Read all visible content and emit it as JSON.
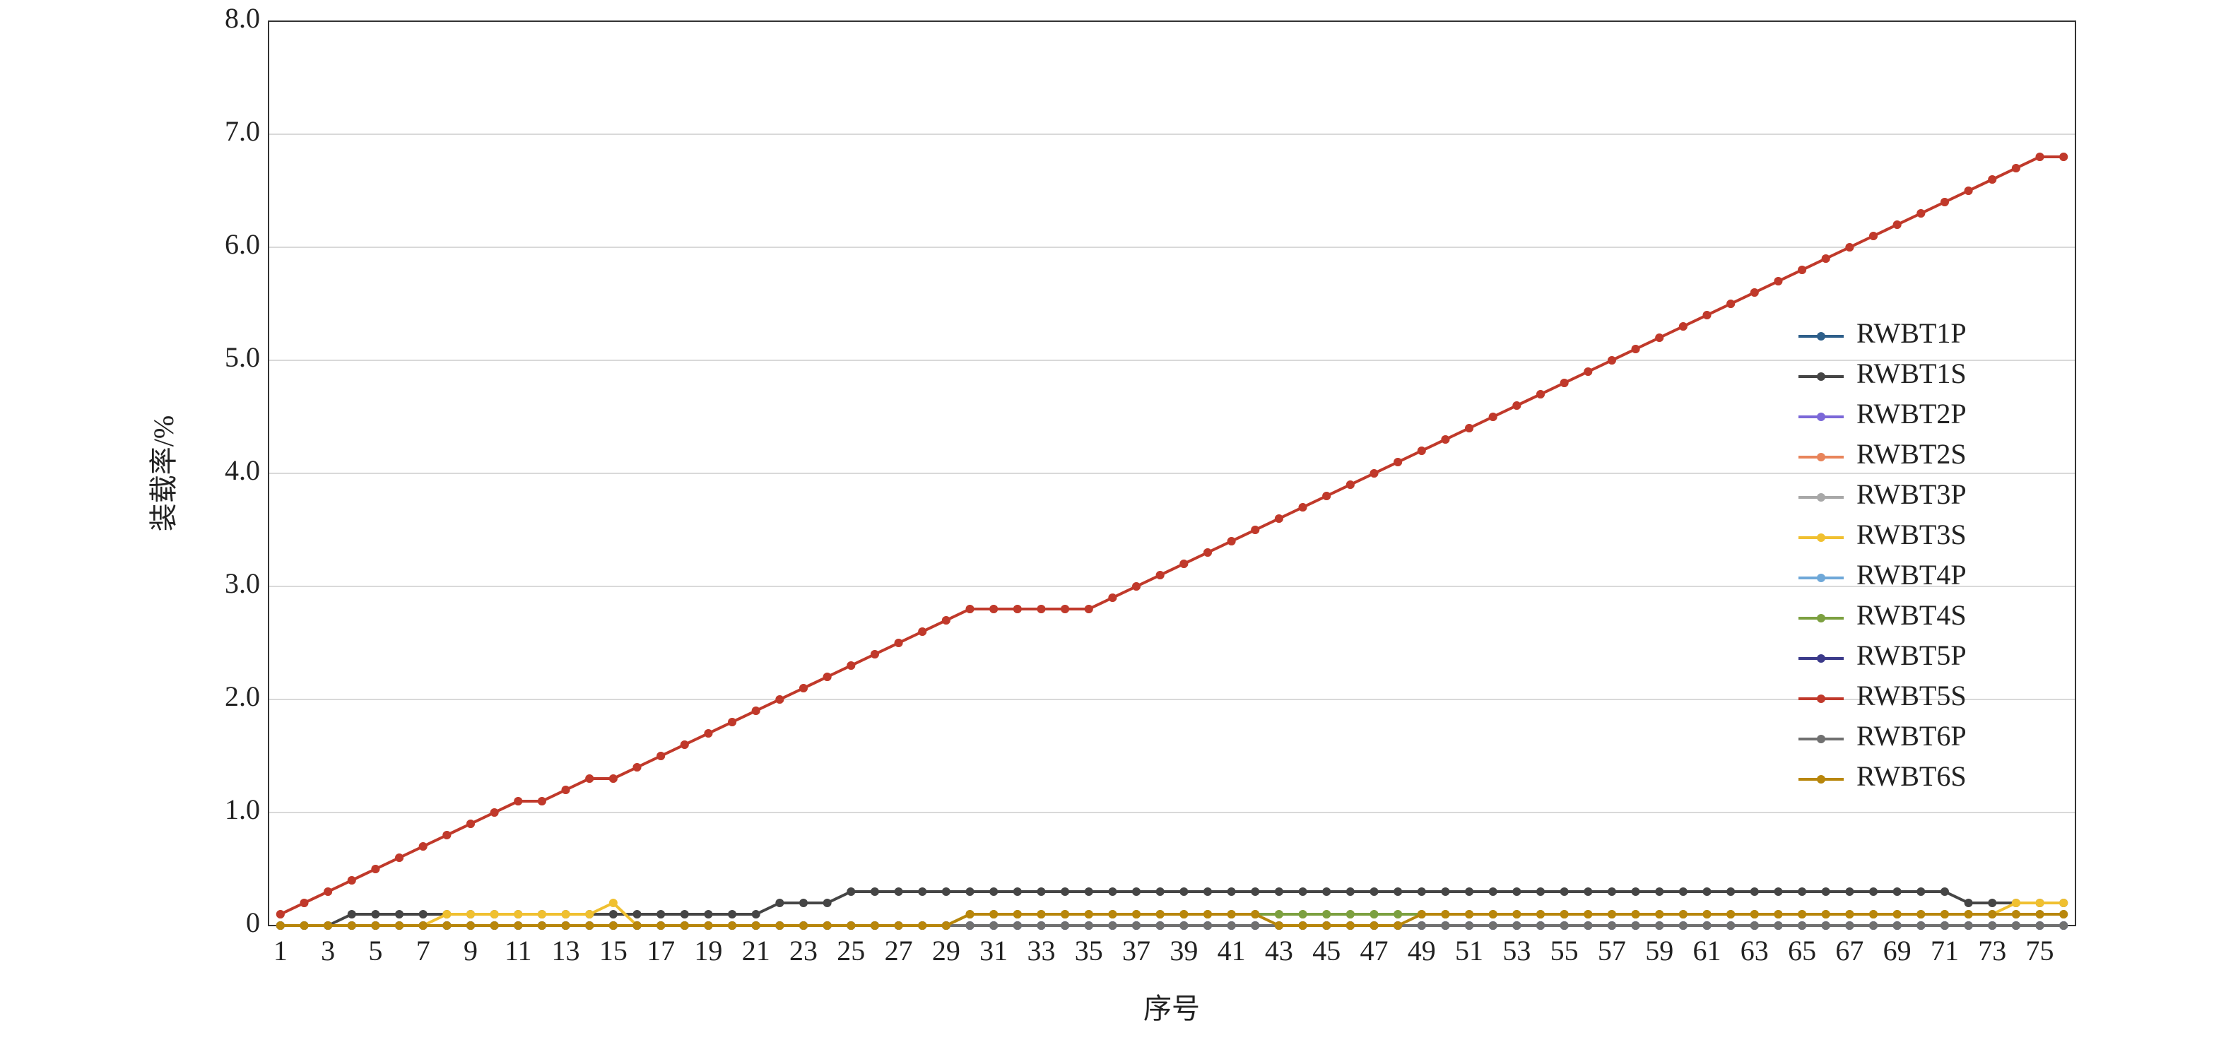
{
  "chart_data": {
    "type": "line",
    "x_label": "序号",
    "y_label": "装载率/%",
    "categories": [
      1,
      null,
      3,
      null,
      5,
      null,
      7,
      null,
      9,
      null,
      11,
      null,
      13,
      null,
      15,
      null,
      17,
      null,
      19,
      null,
      21,
      null,
      23,
      null,
      25,
      null,
      27,
      null,
      29,
      null,
      31,
      null,
      33,
      null,
      35,
      null,
      37,
      null,
      39,
      null,
      41,
      null,
      43,
      null,
      45,
      null,
      47,
      null,
      49,
      null,
      51,
      null,
      53,
      null,
      55,
      null,
      57,
      null,
      59,
      null,
      61,
      null,
      63,
      null,
      65,
      null,
      67,
      null,
      69,
      null,
      71,
      null,
      73,
      null,
      75,
      null
    ],
    "ylim": [
      0,
      8
    ],
    "yticks": [
      0,
      {
        "value": 1,
        "label": "1.0"
      },
      {
        "value": 2,
        "label": "2.0"
      },
      {
        "value": 3,
        "label": "3.0"
      },
      {
        "value": 4,
        "label": "4.0"
      },
      {
        "value": 5,
        "label": "5.0"
      },
      {
        "value": 6,
        "label": "6.0"
      },
      {
        "value": 7,
        "label": "7.0"
      },
      {
        "value": 8,
        "label": "8.0"
      }
    ],
    "grid": true,
    "series": [
      {
        "name": "RWBT1P",
        "color": "#2e5f8a",
        "values": [
          0,
          0,
          0,
          0,
          0,
          0,
          0,
          0,
          0,
          0,
          0,
          0,
          0,
          0,
          0,
          0,
          0,
          0,
          0,
          0,
          0,
          0,
          0,
          0,
          0,
          0,
          0,
          0,
          0,
          0,
          0,
          0,
          0,
          0,
          0,
          0,
          0,
          0,
          0,
          0,
          0,
          0,
          0,
          0,
          0,
          0,
          0,
          0,
          0,
          0,
          0,
          0,
          0,
          0,
          0,
          0,
          0,
          0,
          0,
          0,
          0,
          0,
          0,
          0,
          0,
          0,
          0,
          0,
          0,
          0,
          0,
          0,
          0,
          0,
          0,
          0
        ]
      },
      {
        "name": "RWBT1S",
        "color": "#454545",
        "values": [
          0,
          0,
          0,
          0.1,
          0.1,
          0.1,
          0.1,
          0.1,
          0.1,
          0.1,
          0.1,
          0.1,
          0.1,
          0.1,
          0.1,
          0.1,
          0.1,
          0.1,
          0.1,
          0.1,
          0.1,
          0.2,
          0.2,
          0.2,
          0.3,
          0.3,
          0.3,
          0.3,
          0.3,
          0.3,
          0.3,
          0.3,
          0.3,
          0.3,
          0.3,
          0.3,
          0.3,
          0.3,
          0.3,
          0.3,
          0.3,
          0.3,
          0.3,
          0.3,
          0.3,
          0.3,
          0.3,
          0.3,
          0.3,
          0.3,
          0.3,
          0.3,
          0.3,
          0.3,
          0.3,
          0.3,
          0.3,
          0.3,
          0.3,
          0.3,
          0.3,
          0.3,
          0.3,
          0.3,
          0.3,
          0.3,
          0.3,
          0.3,
          0.3,
          0.3,
          0.3,
          0.2,
          0.2,
          0.2,
          0.2,
          0.2
        ]
      },
      {
        "name": "RWBT2P",
        "color": "#7b68d8",
        "values": [
          0,
          0,
          0,
          0,
          0,
          0,
          0,
          0,
          0,
          0,
          0,
          0,
          0,
          0,
          0,
          0,
          0,
          0,
          0,
          0,
          0,
          0,
          0,
          0,
          0,
          0,
          0,
          0,
          0,
          0,
          0,
          0,
          0,
          0,
          0,
          0,
          0,
          0,
          0,
          0,
          0,
          0,
          0,
          0,
          0,
          0,
          0,
          0,
          0,
          0,
          0,
          0,
          0,
          0,
          0,
          0,
          0,
          0,
          0,
          0,
          0,
          0,
          0,
          0,
          0,
          0,
          0,
          0,
          0,
          0,
          0,
          0,
          0,
          0,
          0,
          0
        ]
      },
      {
        "name": "RWBT2S",
        "color": "#e8845a",
        "values": [
          0.1,
          0.2,
          0.3,
          0.4,
          0.5,
          0.6,
          0.7,
          0.8,
          0.9,
          1,
          1.1,
          1.1,
          1.2,
          1.3,
          1.3,
          1.4,
          1.5,
          1.6,
          1.7,
          1.8,
          1.9,
          2,
          2.1,
          2.2,
          2.3,
          2.4,
          2.5,
          2.6,
          2.7,
          2.8,
          2.8,
          2.8,
          2.8,
          2.8,
          2.8,
          2.9,
          3,
          3.1,
          3.2,
          3.3,
          3.4,
          3.5,
          3.6,
          3.7,
          3.8,
          3.9,
          4,
          4.1,
          4.2,
          4.3,
          4.4,
          4.5,
          4.6,
          4.7,
          4.8,
          4.9,
          5,
          5.1,
          5.2,
          5.3,
          5.4,
          5.5,
          5.6,
          5.7,
          5.8,
          5.9,
          6,
          6.1,
          6.2,
          6.3,
          6.4,
          6.5,
          6.6,
          6.7,
          6.8,
          6.8
        ]
      },
      {
        "name": "RWBT3P",
        "color": "#a8a8a8",
        "values": [
          0,
          0,
          0,
          0,
          0,
          0,
          0,
          0,
          0,
          0,
          0,
          0,
          0,
          0,
          0,
          0,
          0,
          0,
          0,
          0,
          0,
          0,
          0,
          0,
          0,
          0,
          0,
          0,
          0,
          0,
          0,
          0,
          0,
          0,
          0,
          0,
          0,
          0,
          0,
          0,
          0,
          0,
          0,
          0,
          0,
          0,
          0,
          0,
          0,
          0,
          0,
          0,
          0,
          0,
          0,
          0,
          0,
          0,
          0,
          0,
          0,
          0,
          0,
          0,
          0,
          0,
          0,
          0,
          0,
          0,
          0,
          0,
          0,
          0,
          0,
          0
        ]
      },
      {
        "name": "RWBT3S",
        "color": "#f0c030",
        "values": [
          0,
          0,
          0,
          0,
          0,
          0,
          0,
          0.1,
          0.1,
          0.1,
          0.1,
          0.1,
          0.1,
          0.1,
          0.2,
          0,
          0,
          0,
          0,
          0,
          0,
          0,
          0,
          0,
          0,
          0,
          0,
          0,
          0,
          0.1,
          0.1,
          0.1,
          0.1,
          0.1,
          0.1,
          0.1,
          0.1,
          0.1,
          0.1,
          0.1,
          0.1,
          0.1,
          0.1,
          0.1,
          0.1,
          0.1,
          0.1,
          0.1,
          0.1,
          0.1,
          0.1,
          0.1,
          0.1,
          0.1,
          0.1,
          0.1,
          0.1,
          0.1,
          0.1,
          0.1,
          0.1,
          0.1,
          0.1,
          0.1,
          0.1,
          0.1,
          0.1,
          0.1,
          0.1,
          0.1,
          0.1,
          0.1,
          0.1,
          0.2,
          0.2,
          0.2
        ]
      },
      {
        "name": "RWBT4P",
        "color": "#6fa8d8",
        "values": [
          0,
          0,
          0,
          0,
          0,
          0,
          0,
          0,
          0,
          0,
          0,
          0,
          0,
          0,
          0,
          0,
          0,
          0,
          0,
          0,
          0,
          0,
          0,
          0,
          0,
          0,
          0,
          0,
          0,
          0,
          0,
          0,
          0,
          0,
          0,
          0,
          0,
          0,
          0,
          0,
          0,
          0,
          0,
          0,
          0,
          0,
          0,
          0,
          0,
          0,
          0,
          0,
          0,
          0,
          0,
          0,
          0,
          0,
          0,
          0,
          0,
          0,
          0,
          0,
          0,
          0,
          0,
          0,
          0,
          0,
          0,
          0,
          0,
          0,
          0,
          0
        ]
      },
      {
        "name": "RWBT4S",
        "color": "#7ca040",
        "values": [
          0,
          0,
          0,
          0,
          0,
          0,
          0,
          0,
          0,
          0,
          0,
          0,
          0,
          0,
          0,
          0,
          0,
          0,
          0,
          0,
          0,
          0,
          0,
          0,
          0,
          0,
          0,
          0,
          0,
          0.1,
          0.1,
          0.1,
          0.1,
          0.1,
          0.1,
          0.1,
          0.1,
          0.1,
          0.1,
          0.1,
          0.1,
          0.1,
          0.1,
          0.1,
          0.1,
          0.1,
          0.1,
          0.1,
          0.1,
          0.1,
          0.1,
          0.1,
          0.1,
          0.1,
          0.1,
          0.1,
          0.1,
          0.1,
          0.1,
          0.1,
          0.1,
          0.1,
          0.1,
          0.1,
          0.1,
          0.1,
          0.1,
          0.1,
          0.1,
          0.1,
          0.1,
          0.1,
          0.1,
          0.1,
          0.1,
          0.1
        ]
      },
      {
        "name": "RWBT5P",
        "color": "#3b3a8a",
        "values": [
          0,
          0,
          0,
          0,
          0,
          0,
          0,
          0,
          0,
          0,
          0,
          0,
          0,
          0,
          0,
          0,
          0,
          0,
          0,
          0,
          0,
          0,
          0,
          0,
          0,
          0,
          0,
          0,
          0,
          0,
          0,
          0,
          0,
          0,
          0,
          0,
          0,
          0,
          0,
          0,
          0,
          0,
          0,
          0,
          0,
          0,
          0,
          0,
          0,
          0,
          0,
          0,
          0,
          0,
          0,
          0,
          0,
          0,
          0,
          0,
          0,
          0,
          0,
          0,
          0,
          0,
          0,
          0,
          0,
          0,
          0,
          0,
          0,
          0,
          0,
          0
        ]
      },
      {
        "name": "RWBT5S",
        "color": "#c0392b",
        "values": [
          0.1,
          0.2,
          0.3,
          0.4,
          0.5,
          0.6,
          0.7,
          0.8,
          0.9,
          1,
          1.1,
          1.1,
          1.2,
          1.3,
          1.3,
          1.4,
          1.5,
          1.6,
          1.7,
          1.8,
          1.9,
          2,
          2.1,
          2.2,
          2.3,
          2.4,
          2.5,
          2.6,
          2.7,
          2.8,
          2.8,
          2.8,
          2.8,
          2.8,
          2.8,
          2.9,
          3,
          3.1,
          3.2,
          3.3,
          3.4,
          3.5,
          3.6,
          3.7,
          3.8,
          3.9,
          4,
          4.1,
          4.2,
          4.3,
          4.4,
          4.5,
          4.6,
          4.7,
          4.8,
          4.9,
          5,
          5.1,
          5.2,
          5.3,
          5.4,
          5.5,
          5.6,
          5.7,
          5.8,
          5.9,
          6,
          6.1,
          6.2,
          6.3,
          6.4,
          6.5,
          6.6,
          6.7,
          6.8,
          6.8
        ]
      },
      {
        "name": "RWBT6P",
        "color": "#707070",
        "values": [
          0,
          0,
          0,
          0,
          0,
          0,
          0,
          0,
          0,
          0,
          0,
          0,
          0,
          0,
          0,
          0,
          0,
          0,
          0,
          0,
          0,
          0,
          0,
          0,
          0,
          0,
          0,
          0,
          0,
          0,
          0,
          0,
          0,
          0,
          0,
          0,
          0,
          0,
          0,
          0,
          0,
          0,
          0,
          0,
          0,
          0,
          0,
          0,
          0,
          0,
          0,
          0,
          0,
          0,
          0,
          0,
          0,
          0,
          0,
          0,
          0,
          0,
          0,
          0,
          0,
          0,
          0,
          0,
          0,
          0,
          0,
          0,
          0,
          0,
          0,
          0
        ]
      },
      {
        "name": "RWBT6S",
        "color": "#b8860b",
        "values": [
          0,
          0,
          0,
          0,
          0,
          0,
          0,
          0,
          0,
          0,
          0,
          0,
          0,
          0,
          0,
          0,
          0,
          0,
          0,
          0,
          0,
          0,
          0,
          0,
          0,
          0,
          0,
          0,
          0,
          0.1,
          0.1,
          0.1,
          0.1,
          0.1,
          0.1,
          0.1,
          0.1,
          0.1,
          0.1,
          0.1,
          0.1,
          0.1,
          0,
          0,
          0,
          0,
          0,
          0,
          0.1,
          0.1,
          0.1,
          0.1,
          0.1,
          0.1,
          0.1,
          0.1,
          0.1,
          0.1,
          0.1,
          0.1,
          0.1,
          0.1,
          0.1,
          0.1,
          0.1,
          0.1,
          0.1,
          0.1,
          0.1,
          0.1,
          0.1,
          0.1,
          0.1,
          0.1,
          0.1,
          0.1
        ]
      }
    ]
  }
}
